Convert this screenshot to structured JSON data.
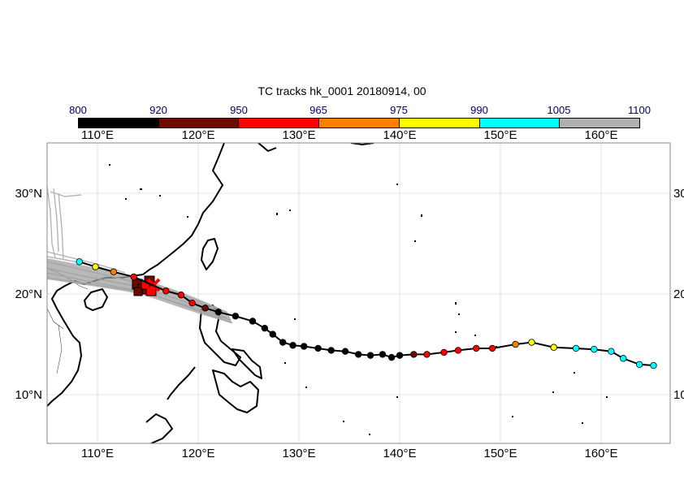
{
  "title": "TC tracks  hk_0001 20180914, 00",
  "colorbar": {
    "labels": [
      "800",
      "920",
      "950",
      "965",
      "975",
      "990",
      "1005",
      "1100"
    ],
    "colors": [
      "#000000",
      "#6b0c00",
      "#ff0000",
      "#ff8000",
      "#ffff00",
      "#00ffff",
      "#b0b0b0"
    ]
  },
  "axes": {
    "lon_ticks": [
      "110°E",
      "120°E",
      "130°E",
      "140°E",
      "150°E",
      "160°E"
    ],
    "lat_ticks_left": [
      "30°N",
      "20°N",
      "10°N"
    ],
    "lat_ticks_right": [
      "30",
      "20",
      "10"
    ]
  },
  "track_points": [
    {
      "lon": 108.2,
      "lat": 23.2,
      "c": "cyan"
    },
    {
      "lon": 109.8,
      "lat": 22.7,
      "c": "yellow"
    },
    {
      "lon": 111.6,
      "lat": 22.2,
      "c": "orange"
    },
    {
      "lon": 113.6,
      "lat": 21.7,
      "c": "red"
    },
    {
      "lon": 116.8,
      "lat": 20.3,
      "c": "red"
    },
    {
      "lon": 118.3,
      "lat": 19.9,
      "c": "red"
    },
    {
      "lon": 119.4,
      "lat": 19.1,
      "c": "red"
    },
    {
      "lon": 120.7,
      "lat": 18.6,
      "c": "darkred"
    },
    {
      "lon": 122.0,
      "lat": 18.2,
      "c": "black"
    },
    {
      "lon": 123.7,
      "lat": 17.8,
      "c": "black"
    },
    {
      "lon": 125.4,
      "lat": 17.3,
      "c": "black"
    },
    {
      "lon": 126.6,
      "lat": 16.6,
      "c": "black"
    },
    {
      "lon": 127.4,
      "lat": 16.0,
      "c": "black"
    },
    {
      "lon": 128.4,
      "lat": 15.2,
      "c": "black"
    },
    {
      "lon": 129.4,
      "lat": 14.9,
      "c": "black"
    },
    {
      "lon": 130.5,
      "lat": 14.8,
      "c": "black"
    },
    {
      "lon": 131.9,
      "lat": 14.6,
      "c": "black"
    },
    {
      "lon": 133.2,
      "lat": 14.4,
      "c": "black"
    },
    {
      "lon": 134.6,
      "lat": 14.3,
      "c": "black"
    },
    {
      "lon": 135.9,
      "lat": 14.0,
      "c": "black"
    },
    {
      "lon": 137.1,
      "lat": 13.9,
      "c": "black"
    },
    {
      "lon": 138.3,
      "lat": 14.0,
      "c": "black"
    },
    {
      "lon": 139.2,
      "lat": 13.7,
      "c": "black"
    },
    {
      "lon": 140.0,
      "lat": 13.9,
      "c": "black"
    },
    {
      "lon": 141.4,
      "lat": 14.0,
      "c": "darkred"
    },
    {
      "lon": 142.7,
      "lat": 14.0,
      "c": "red"
    },
    {
      "lon": 144.4,
      "lat": 14.2,
      "c": "red"
    },
    {
      "lon": 145.8,
      "lat": 14.4,
      "c": "red"
    },
    {
      "lon": 147.6,
      "lat": 14.6,
      "c": "red"
    },
    {
      "lon": 149.2,
      "lat": 14.6,
      "c": "red"
    },
    {
      "lon": 151.5,
      "lat": 15.0,
      "c": "orange"
    },
    {
      "lon": 153.1,
      "lat": 15.2,
      "c": "yellow"
    },
    {
      "lon": 155.3,
      "lat": 14.7,
      "c": "yellow"
    },
    {
      "lon": 157.5,
      "lat": 14.6,
      "c": "cyan"
    },
    {
      "lon": 159.3,
      "lat": 14.5,
      "c": "cyan"
    },
    {
      "lon": 161.0,
      "lat": 14.3,
      "c": "cyan"
    },
    {
      "lon": 162.2,
      "lat": 13.6,
      "c": "cyan"
    },
    {
      "lon": 163.8,
      "lat": 13.0,
      "c": "cyan"
    },
    {
      "lon": 165.2,
      "lat": 12.9,
      "c": "cyan"
    }
  ]
}
